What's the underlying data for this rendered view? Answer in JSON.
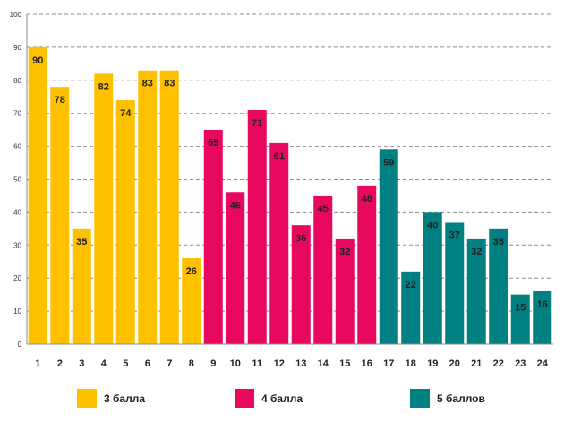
{
  "chart_data": {
    "type": "bar",
    "title": "",
    "xlabel": "",
    "ylabel": "",
    "ylim": [
      0,
      100
    ],
    "yticks": [
      0,
      10,
      20,
      30,
      40,
      50,
      60,
      70,
      80,
      90,
      100
    ],
    "grid": true,
    "categories": [
      "1",
      "2",
      "3",
      "4",
      "5",
      "6",
      "7",
      "8",
      "9",
      "10",
      "11",
      "12",
      "13",
      "14",
      "15",
      "16",
      "17",
      "18",
      "19",
      "20",
      "21",
      "22",
      "23",
      "24"
    ],
    "values": [
      90,
      78,
      35,
      82,
      74,
      83,
      83,
      26,
      65,
      46,
      71,
      61,
      36,
      45,
      32,
      48,
      59,
      22,
      40,
      37,
      32,
      35,
      15,
      16
    ],
    "groups": [
      0,
      0,
      0,
      0,
      0,
      0,
      0,
      0,
      1,
      1,
      1,
      1,
      1,
      1,
      1,
      1,
      2,
      2,
      2,
      2,
      2,
      2,
      2,
      2
    ],
    "legend": [
      {
        "label": "3 балла",
        "color": "#FFC000"
      },
      {
        "label": "4 балла",
        "color": "#E8095F"
      },
      {
        "label": "5 баллов",
        "color": "#008080"
      }
    ]
  }
}
